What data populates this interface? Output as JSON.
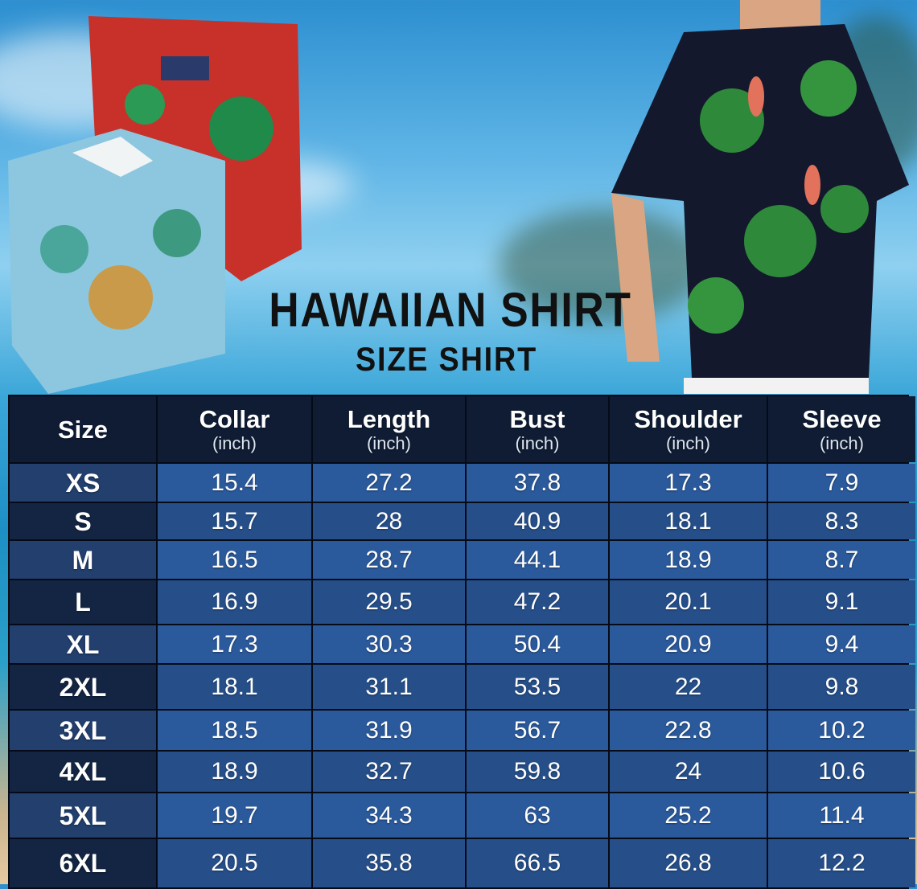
{
  "title": "HAWAIIAN SHIRT",
  "subtitle": "SIZE SHIRT",
  "table": {
    "headers": [
      {
        "label": "Size",
        "unit": ""
      },
      {
        "label": "Collar",
        "unit": "(inch)"
      },
      {
        "label": "Length",
        "unit": "(inch)"
      },
      {
        "label": "Bust",
        "unit": "(inch)"
      },
      {
        "label": "Shoulder",
        "unit": "(inch)"
      },
      {
        "label": "Sleeve",
        "unit": "(inch)"
      }
    ],
    "rows": [
      [
        "XS",
        "15.4",
        "27.2",
        "37.8",
        "17.3",
        "7.9"
      ],
      [
        "S",
        "15.7",
        "28",
        "40.9",
        "18.1",
        "8.3"
      ],
      [
        "M",
        "16.5",
        "28.7",
        "44.1",
        "18.9",
        "8.7"
      ],
      [
        "L",
        "16.9",
        "29.5",
        "47.2",
        "20.1",
        "9.1"
      ],
      [
        "XL",
        "17.3",
        "30.3",
        "50.4",
        "20.9",
        "9.4"
      ],
      [
        "2XL",
        "18.1",
        "31.1",
        "53.5",
        "22",
        "9.8"
      ],
      [
        "3XL",
        "18.5",
        "31.9",
        "56.7",
        "22.8",
        "10.2"
      ],
      [
        "4XL",
        "18.9",
        "32.7",
        "59.8",
        "24",
        "10.6"
      ],
      [
        "5XL",
        "19.7",
        "34.3",
        "63",
        "25.2",
        "11.4"
      ],
      [
        "6XL",
        "20.5",
        "35.8",
        "66.5",
        "26.8",
        "12.2"
      ]
    ]
  },
  "colors": {
    "header": "#0f1c34",
    "cell_light": "#2b5a9c",
    "cell_dark": "#264f8a",
    "size_col": "#132543"
  }
}
